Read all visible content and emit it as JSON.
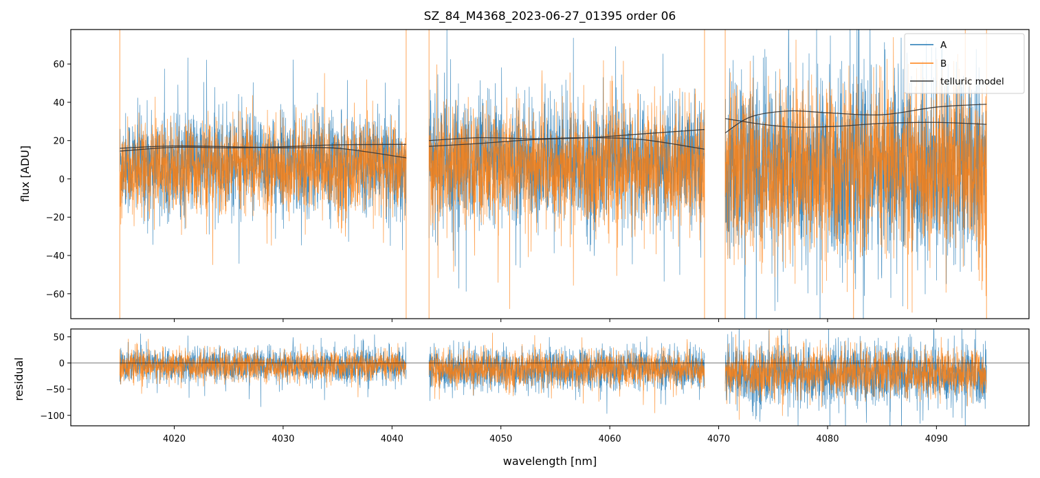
{
  "chart_data": [
    {
      "type": "line",
      "panel": "top",
      "title": "SZ_84_M4368_2023-06-27_01395  order 06",
      "xlabel": "",
      "ylabel": "flux [ADU]",
      "xlim": [
        4010.5,
        4098.5
      ],
      "ylim": [
        -73,
        78
      ],
      "yticks": [
        -60,
        -40,
        -20,
        0,
        20,
        40,
        60
      ],
      "grid": false,
      "legend_position": "top-right",
      "segments": [
        [
          4015.0,
          4041.3
        ],
        [
          4043.4,
          4068.7
        ],
        [
          4070.6,
          4094.6
        ]
      ],
      "series": [
        {
          "name": "A",
          "color": "#1f77b4",
          "noise_level": [
            {
              "x": [
                4015.0,
                4041.3
              ],
              "center": 8,
              "spread": 13
            },
            {
              "x": [
                4043.4,
                4068.7
              ],
              "center": 8,
              "spread": 16
            },
            {
              "x": [
                4070.6,
                4094.6
              ],
              "center": 6,
              "spread": 24
            }
          ]
        },
        {
          "name": "B",
          "color": "#ff7f0e",
          "noise_level": [
            {
              "x": [
                4015.0,
                4041.3
              ],
              "center": 6,
              "spread": 12
            },
            {
              "x": [
                4043.4,
                4068.7
              ],
              "center": 6,
              "spread": 15
            },
            {
              "x": [
                4070.6,
                4094.6
              ],
              "center": 5,
              "spread": 22
            }
          ]
        },
        {
          "name": "telluric model",
          "color": "#333333",
          "curves": [
            {
              "x": [
                4015.0,
                4020.0,
                4025.0,
                4030.0,
                4035.0,
                4041.3
              ],
              "y": [
                16.0,
                17.2,
                16.8,
                16.2,
                16.0,
                11.0
              ]
            },
            {
              "x": [
                4015.0,
                4020.0,
                4025.0,
                4030.0,
                4035.0,
                4041.3
              ],
              "y": [
                14.5,
                16.5,
                16.2,
                16.8,
                17.8,
                18.0
              ]
            },
            {
              "x": [
                4043.4,
                4048.0,
                4053.0,
                4058.0,
                4063.0,
                4068.7
              ],
              "y": [
                20.0,
                21.5,
                21.0,
                21.5,
                20.5,
                15.5
              ]
            },
            {
              "x": [
                4043.4,
                4048.0,
                4053.0,
                4058.0,
                4063.0,
                4068.7
              ],
              "y": [
                17.0,
                18.5,
                20.5,
                21.5,
                23.5,
                25.8
              ]
            },
            {
              "x": [
                4070.6,
                4074.0,
                4077.0,
                4081.0,
                4085.0,
                4090.0,
                4094.6
              ],
              "y": [
                31.5,
                28.5,
                27.0,
                27.5,
                29.0,
                29.5,
                28.5
              ]
            },
            {
              "x": [
                4070.6,
                4073.0,
                4076.5,
                4080.0,
                4085.0,
                4090.0,
                4094.6
              ],
              "y": [
                24.0,
                32.5,
                35.5,
                34.5,
                33.5,
                37.5,
                39.0
              ]
            }
          ]
        }
      ]
    },
    {
      "type": "line",
      "panel": "bottom",
      "xlabel": "wavelength [nm]",
      "ylabel": "residual",
      "xlim": [
        4010.5,
        4098.5
      ],
      "ylim": [
        -120,
        65
      ],
      "xticks": [
        4020,
        4030,
        4040,
        4050,
        4060,
        4070,
        4080,
        4090
      ],
      "yticks": [
        -100,
        -50,
        0,
        50
      ],
      "reference_line_y": 0,
      "grid": false,
      "series": [
        {
          "name": "A",
          "color": "#1f77b4",
          "noise_level": [
            {
              "x": [
                4015.0,
                4041.3
              ],
              "center": -5,
              "spread": 16
            },
            {
              "x": [
                4043.4,
                4068.7
              ],
              "center": -12,
              "spread": 20
            },
            {
              "x": [
                4070.6,
                4094.6
              ],
              "center": -22,
              "spread": 30
            }
          ]
        },
        {
          "name": "B",
          "color": "#ff7f0e",
          "noise_level": [
            {
              "x": [
                4015.0,
                4041.3
              ],
              "center": -6,
              "spread": 14
            },
            {
              "x": [
                4043.4,
                4068.7
              ],
              "center": -12,
              "spread": 17
            },
            {
              "x": [
                4070.6,
                4094.6
              ],
              "center": -18,
              "spread": 22
            }
          ]
        }
      ]
    }
  ]
}
